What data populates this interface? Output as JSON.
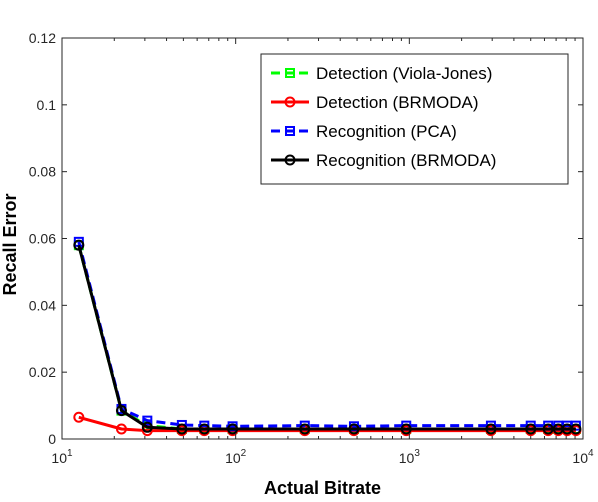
{
  "chart_data": {
    "type": "line",
    "xlabel": "Actual Bitrate",
    "ylabel": "Recall Error",
    "xscale": "log",
    "xlim": [
      10,
      10000
    ],
    "ylim": [
      0,
      0.12
    ],
    "x_ticks": [
      {
        "base": "10",
        "exp": "1"
      },
      {
        "base": "10",
        "exp": "2"
      },
      {
        "base": "10",
        "exp": "3"
      },
      {
        "base": "10",
        "exp": "4"
      }
    ],
    "y_ticks": [
      "0",
      "0.02",
      "0.04",
      "0.06",
      "0.08",
      "0.1",
      "0.12"
    ],
    "grid": false,
    "legend_position": "top-right",
    "series": [
      {
        "name": "Detection (Viola-Jones)",
        "color": "#00ff00",
        "line_style": "dashed",
        "marker": "square",
        "x": [
          12.5,
          22,
          31,
          49,
          66,
          96,
          250,
          480,
          960,
          2950,
          5000,
          6300,
          7200,
          8100,
          9100
        ],
        "y": [
          0.058,
          0.0085,
          0.004,
          0.003,
          0.003,
          0.003,
          0.003,
          0.003,
          0.003,
          0.003,
          0.003,
          0.003,
          0.003,
          0.003,
          0.003
        ]
      },
      {
        "name": "Detection (BRMODA)",
        "color": "#ff0000",
        "line_style": "solid",
        "marker": "circle",
        "x": [
          12.5,
          22,
          31,
          49,
          66,
          96,
          250,
          480,
          960,
          2950,
          5000,
          6300,
          7200,
          8100,
          9100
        ],
        "y": [
          0.0065,
          0.003,
          0.0025,
          0.0025,
          0.0025,
          0.0025,
          0.0025,
          0.0025,
          0.0025,
          0.0025,
          0.0025,
          0.0025,
          0.0025,
          0.0025,
          0.0025
        ]
      },
      {
        "name": "Recognition (PCA)",
        "color": "#0000ff",
        "line_style": "dashed",
        "marker": "square",
        "x": [
          12.5,
          22,
          31,
          49,
          66,
          96,
          250,
          480,
          960,
          2950,
          5000,
          6300,
          7200,
          8100,
          9100
        ],
        "y": [
          0.059,
          0.009,
          0.0055,
          0.0042,
          0.004,
          0.0038,
          0.004,
          0.0038,
          0.004,
          0.004,
          0.004,
          0.004,
          0.004,
          0.004,
          0.004
        ]
      },
      {
        "name": "Recognition (BRMODA)",
        "color": "#000000",
        "line_style": "solid",
        "marker": "circle",
        "x": [
          12.5,
          22,
          31,
          49,
          66,
          96,
          250,
          480,
          960,
          2950,
          5000,
          6300,
          7200,
          8100,
          9100
        ],
        "y": [
          0.058,
          0.0085,
          0.0035,
          0.003,
          0.003,
          0.003,
          0.003,
          0.003,
          0.003,
          0.003,
          0.003,
          0.003,
          0.003,
          0.003,
          0.003
        ]
      }
    ]
  }
}
